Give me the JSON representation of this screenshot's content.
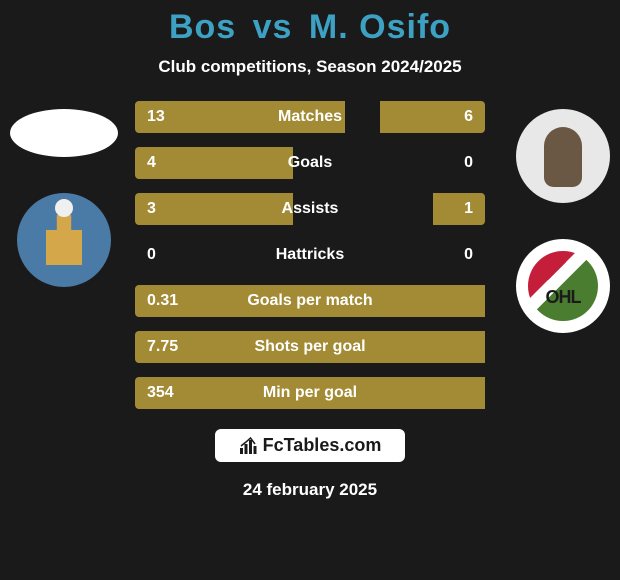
{
  "title": {
    "player1": "Bos",
    "vs": "vs",
    "player2": "M. Osifo",
    "color": "#3da1c4"
  },
  "subtitle": "Club competitions, Season 2024/2025",
  "bar_color": "#a38b35",
  "background_color": "#1a1a1a",
  "text_color": "#ffffff",
  "bars": [
    {
      "label": "Matches",
      "left_value": "13",
      "right_value": "6",
      "left_pct": 60,
      "right_pct": 30
    },
    {
      "label": "Goals",
      "left_value": "4",
      "right_value": "0",
      "left_pct": 45,
      "right_pct": 2
    },
    {
      "label": "Assists",
      "left_value": "3",
      "right_value": "1",
      "left_pct": 45,
      "right_pct": 15
    },
    {
      "label": "Hattricks",
      "left_value": "0",
      "right_value": "0",
      "left_pct": 2,
      "right_pct": 2
    },
    {
      "label": "Goals per match",
      "left_value": "0.31",
      "right_value": "",
      "left_pct": 100,
      "right_pct": 0
    },
    {
      "label": "Shots per goal",
      "left_value": "7.75",
      "right_value": "",
      "left_pct": 100,
      "right_pct": 0
    },
    {
      "label": "Min per goal",
      "left_value": "354",
      "right_value": "",
      "left_pct": 100,
      "right_pct": 0
    }
  ],
  "club2_label": "OHL",
  "footer": {
    "brand": "FcTables.com",
    "date": "24 february 2025"
  }
}
